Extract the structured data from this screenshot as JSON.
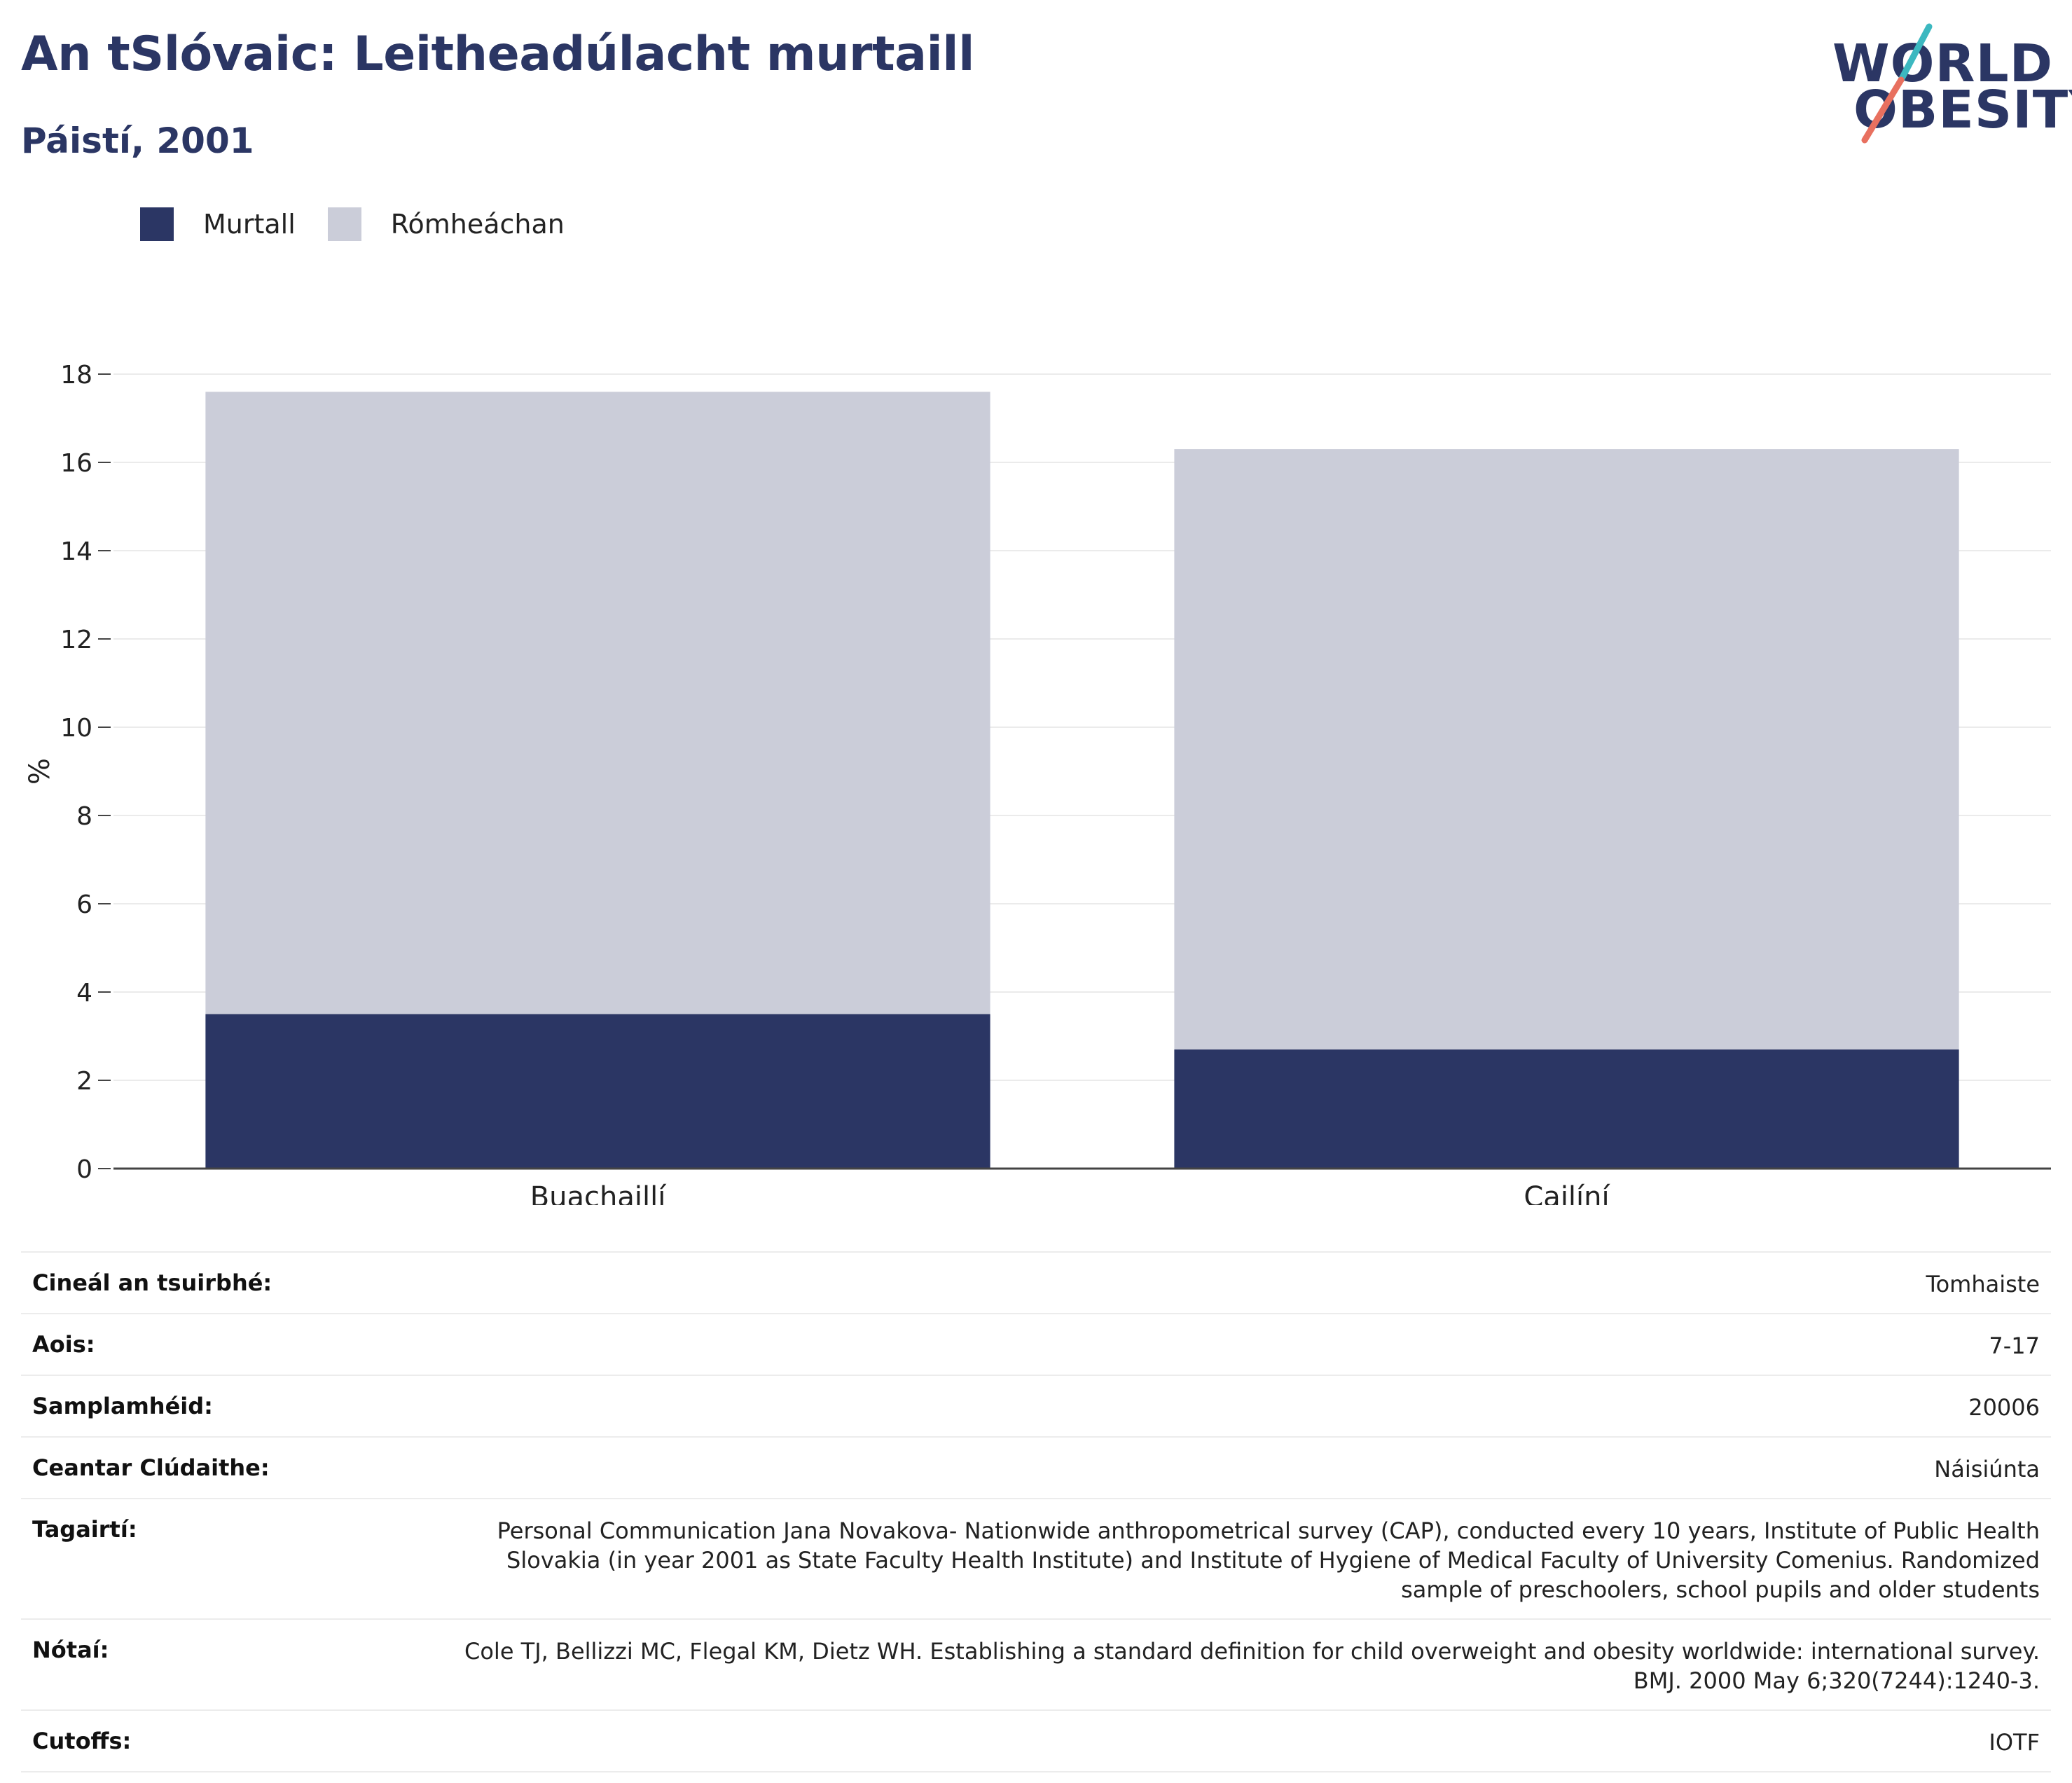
{
  "header": {
    "title": "An tSlóvaic: Leitheadúlacht murtaill",
    "subtitle": "Páistí, 2001"
  },
  "logo": {
    "line1": "WORLD",
    "line2": "OBESITY",
    "accent_teal": "#3cb8c0",
    "accent_coral": "#e8705f"
  },
  "legend": [
    {
      "label": "Murtall",
      "color": "#2b3664"
    },
    {
      "label": "Rómheáchan",
      "color": "#cbcdd9"
    }
  ],
  "chart_data": {
    "type": "bar",
    "stacked": true,
    "categories": [
      "Buachaillí",
      "Cailíní"
    ],
    "series": [
      {
        "name": "Murtall",
        "values": [
          3.5,
          2.7
        ],
        "color": "#2b3664"
      },
      {
        "name": "Rómheáchan",
        "values": [
          14.1,
          13.6
        ],
        "color": "#cbcdd9"
      }
    ],
    "ylabel": "%",
    "ylim": [
      0,
      18
    ],
    "yticks": [
      0,
      2,
      4,
      6,
      8,
      10,
      12,
      14,
      16,
      18
    ],
    "grid": true
  },
  "metadata": [
    {
      "key": "Cineál an tsuirbhé:",
      "value": "Tomhaiste"
    },
    {
      "key": "Aois:",
      "value": "7-17"
    },
    {
      "key": "Samplamhéid:",
      "value": "20006"
    },
    {
      "key": "Ceantar Clúdaithe:",
      "value": "Náisiúnta"
    },
    {
      "key": "Tagairtí:",
      "value": "Personal Communication Jana Novakova- Nationwide anthropometrical survey (CAP), conducted every 10 years, Institute of Public Health Slovakia (in year 2001 as State Faculty Health Institute) and Institute of Hygiene of Medical Faculty of University Comenius. Randomized sample of preschoolers, school pupils and older students"
    },
    {
      "key": "Nótaí:",
      "value": "Cole TJ, Bellizzi MC, Flegal KM, Dietz WH. Establishing a standard definition for child overweight and obesity worldwide: international survey. BMJ. 2000 May 6;320(7244):1240-3."
    },
    {
      "key": "Cutoffs:",
      "value": "IOTF"
    }
  ]
}
